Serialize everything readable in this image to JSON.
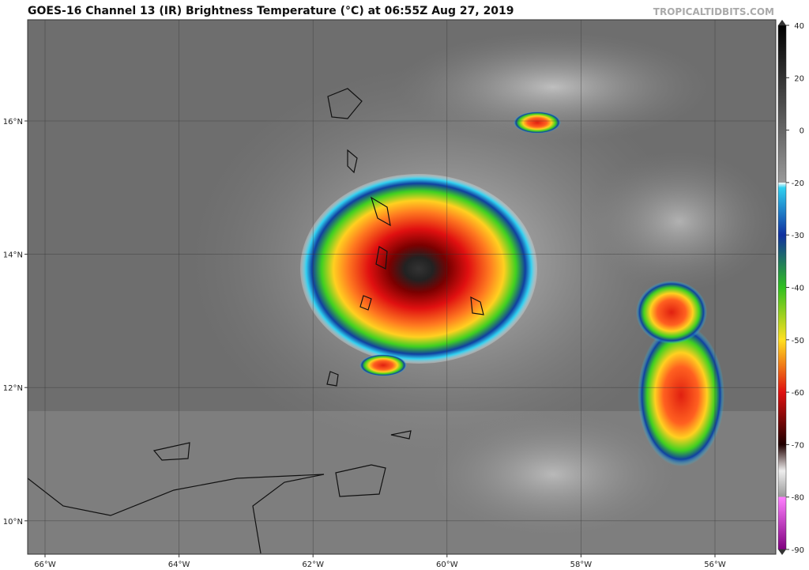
{
  "header": {
    "title": "GOES-16 Channel 13 (IR) Brightness Temperature (°C) at 06:55Z Aug 27, 2019",
    "credit": "TROPICALTIDBITS.COM"
  },
  "latitudes": [
    {
      "value": 16,
      "label": "16°N"
    },
    {
      "value": 14,
      "label": "14°N"
    },
    {
      "value": 12,
      "label": "12°N"
    },
    {
      "value": 10,
      "label": "10°N"
    }
  ],
  "longitudes": [
    {
      "value": -66,
      "label": "66°W"
    },
    {
      "value": -64,
      "label": "64°W"
    },
    {
      "value": -62,
      "label": "62°W"
    },
    {
      "value": -60,
      "label": "60°W"
    },
    {
      "value": -58,
      "label": "58°W"
    },
    {
      "value": -56,
      "label": "56°W"
    }
  ],
  "colorbar": {
    "ticks": [
      40,
      20,
      0,
      -20,
      -30,
      -40,
      -50,
      -60,
      -70,
      -80,
      -90
    ]
  }
}
